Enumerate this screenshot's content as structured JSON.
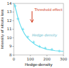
{
  "chart_data": {
    "type": "line",
    "xlabel": "Hedge-density",
    "ylabel": "Intensity of nitrate loss",
    "xlim": [
      0,
      300
    ],
    "ylim": [
      8,
      14
    ],
    "xticks": [
      0,
      100,
      200,
      300
    ],
    "yticks": [
      8,
      9,
      10,
      11,
      12,
      13,
      14
    ],
    "grid": false,
    "series": [
      {
        "type": "line",
        "color": "#66ddee",
        "x": [
          3,
          6,
          9,
          12,
          16,
          20,
          25,
          30,
          40,
          50,
          65,
          80,
          100,
          130,
          160,
          200,
          250,
          300
        ],
        "values": [
          14.0,
          13.8,
          13.55,
          13.3,
          13.0,
          12.7,
          12.35,
          12.0,
          11.45,
          11.0,
          10.45,
          10.05,
          9.65,
          9.2,
          8.9,
          8.65,
          8.5,
          8.42
        ]
      },
      {
        "type": "scatter",
        "color": "#66ddee",
        "marker": "plus",
        "x": [
          8,
          25,
          55,
          85,
          120,
          155,
          190,
          230,
          275
        ],
        "values": [
          13.7,
          12.2,
          11.0,
          10.1,
          9.5,
          9.0,
          8.8,
          8.65,
          8.45
        ]
      }
    ],
    "arrows": [
      {
        "x": 110,
        "y_start": 13.1,
        "y_end": 11.8,
        "color": "#cc2200"
      }
    ],
    "annotations": [
      {
        "text": "Threshold effect",
        "x": 125,
        "y": 13.2,
        "color": "#cc2200"
      },
      {
        "text": "Hedge-density",
        "x": 110,
        "y": 10.3,
        "color": "#66bbcc"
      }
    ]
  }
}
